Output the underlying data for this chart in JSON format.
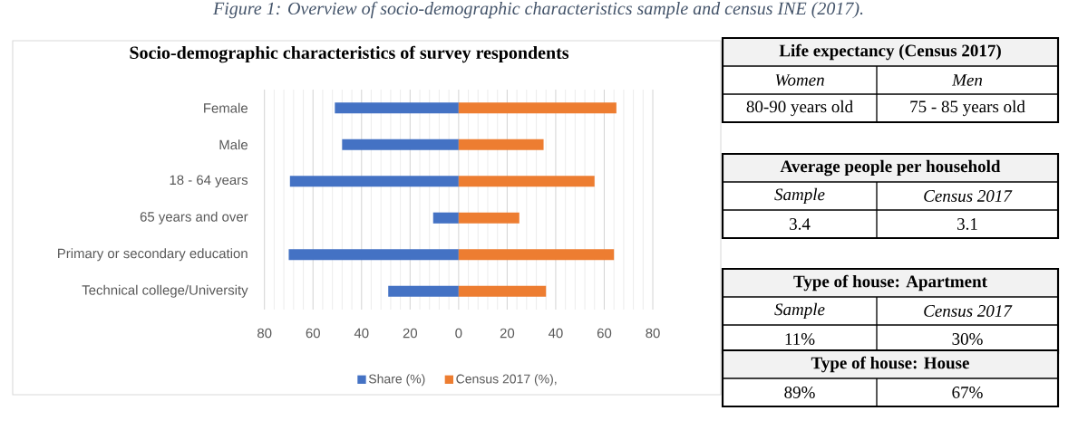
{
  "chart_data": [
    {
      "type": "bar",
      "orientation": "horizontal",
      "stacked": true,
      "title": "Socio-demographic characteristics of survey respondents",
      "annotations": [
        "Figure 1: Overview of socio-demographic characteristics sample and census INE (2017)."
      ],
      "categories": [
        "Female",
        "Male",
        "18 - 64 years",
        "65 years and over",
        "Primary or secondary education",
        "Technical college/University"
      ],
      "series": [
        {
          "name": "Share (%)",
          "color": "#4472c4",
          "values": [
            -51,
            -48,
            -69.5,
            -10.5,
            -70,
            -29
          ]
        },
        {
          "name": "Census 2017 (%),",
          "color": "#ed7d31",
          "values": [
            65,
            35,
            56,
            25,
            64,
            36
          ]
        }
      ],
      "xlim": [
        -80,
        80
      ],
      "xticks": [
        {
          "value": -80,
          "label": "80"
        },
        {
          "value": -60,
          "label": "60"
        },
        {
          "value": -40,
          "label": "40"
        },
        {
          "value": -20,
          "label": "20"
        },
        0,
        20,
        40,
        60,
        80
      ],
      "grid": "x",
      "legend": "bottom"
    },
    {
      "type": "other",
      "title": "Life expectancy (Census 2017)",
      "categories": [
        "Women",
        "Men"
      ],
      "annotations": [
        "80-90 years old",
        "75 - 85 years old"
      ]
    },
    {
      "type": "other",
      "title": "Average people per household",
      "categories": [
        "Sample",
        "Census 2017"
      ],
      "annotations": [
        "3.4",
        "3.1"
      ]
    },
    {
      "type": "other",
      "title": "Type of house: Apartment",
      "categories": [
        "Sample",
        "Census 2017"
      ],
      "annotations": [
        "11%",
        "30%"
      ]
    },
    {
      "type": "other",
      "title": "Type of house: House",
      "annotations": [
        "89%",
        "67%"
      ]
    }
  ]
}
